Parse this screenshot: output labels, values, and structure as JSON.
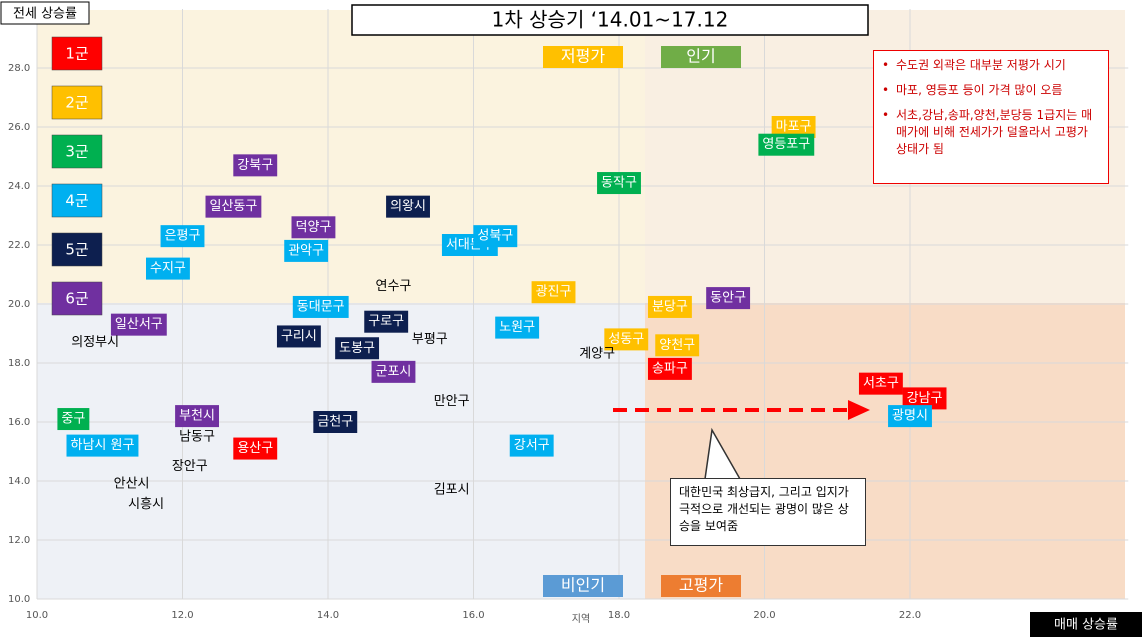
{
  "chart_data": {
    "type": "scatter",
    "title": "1차 상승기 ‘14.01~17.12",
    "ylabel": "전세 상승률",
    "xlabel": "매매 상승률",
    "x_axis_name": "지역",
    "xlim": [
      10,
      25
    ],
    "ylim": [
      10,
      30
    ],
    "xticks": [
      {
        "value": 10,
        "label": "10.0"
      },
      {
        "value": 12,
        "label": "12.0"
      },
      {
        "value": 14,
        "label": "14.0"
      },
      {
        "value": 16,
        "label": "16.0"
      },
      {
        "value": 18,
        "label": "18.0"
      },
      {
        "value": 20,
        "label": "20.0"
      },
      {
        "value": 22,
        "label": "22.0"
      }
    ],
    "yticks": [
      {
        "value": 10,
        "label": "10.0"
      },
      {
        "value": 12,
        "label": "12.0"
      },
      {
        "value": 14,
        "label": "14.0"
      },
      {
        "value": 16,
        "label": "16.0"
      },
      {
        "value": 18,
        "label": "18.0"
      },
      {
        "value": 20,
        "label": "20.0"
      },
      {
        "value": 22,
        "label": "22.0"
      },
      {
        "value": 24,
        "label": "24.0"
      },
      {
        "value": 26,
        "label": "26.0"
      },
      {
        "value": 28,
        "label": "28.0"
      }
    ],
    "grid": true,
    "series": [
      {
        "name": "1군",
        "color": "#ff0000",
        "boxed": true,
        "labels": [
          "용산구",
          "송파구",
          "서초구",
          "강남구"
        ],
        "x": [
          13.0,
          18.7,
          21.6,
          22.2
        ],
        "y": [
          15.1,
          17.8,
          17.3,
          16.8
        ]
      },
      {
        "name": "2군",
        "color": "#ffc000",
        "boxed": true,
        "labels": [
          "마포구",
          "광진구",
          "분당구",
          "성동구",
          "양천구"
        ],
        "x": [
          20.4,
          17.1,
          18.7,
          18.1,
          18.8
        ],
        "y": [
          26.0,
          20.4,
          19.9,
          18.8,
          18.6
        ]
      },
      {
        "name": "3군",
        "color": "#00b050",
        "boxed": true,
        "labels": [
          "영등포구",
          "동작구",
          "중구"
        ],
        "x": [
          20.3,
          18.0,
          10.5
        ],
        "y": [
          25.4,
          24.1,
          16.1
        ]
      },
      {
        "name": "4군",
        "color": "#00b0f0",
        "boxed": true,
        "labels": [
          "서대문구",
          "성북구",
          "관악구",
          "은평구",
          "수지구",
          "동대문구",
          "노원구",
          "강서구",
          "하남시 원구",
          "광명시"
        ],
        "x": [
          15.95,
          16.3,
          13.7,
          12.0,
          11.8,
          13.9,
          16.6,
          16.8,
          10.9,
          22.0
        ],
        "y": [
          22.0,
          22.3,
          21.8,
          22.3,
          21.2,
          19.9,
          19.2,
          15.2,
          15.2,
          16.2
        ]
      },
      {
        "name": "5군",
        "color": "#0d1f4f",
        "boxed": true,
        "labels": [
          "의왕시",
          "구리시",
          "구로구",
          "도봉구",
          "금천구"
        ],
        "x": [
          15.1,
          13.6,
          14.8,
          14.4,
          14.1
        ],
        "y": [
          23.3,
          18.9,
          19.4,
          18.5,
          16.0
        ]
      },
      {
        "name": "6군",
        "color": "#7030a0",
        "boxed": true,
        "labels": [
          "강북구",
          "일산동구",
          "덕양구",
          "일산서구",
          "군포시",
          "부천시",
          "동안구"
        ],
        "x": [
          13.0,
          12.7,
          13.8,
          11.4,
          14.9,
          12.2,
          19.5
        ],
        "y": [
          24.7,
          23.3,
          22.6,
          19.3,
          17.7,
          16.2,
          20.2
        ]
      },
      {
        "color": "#000000",
        "boxed": false,
        "labels": [
          "연수구",
          "부평구",
          "의정부시",
          "계양구",
          "만안구",
          "남동구",
          "장안구",
          "안산시",
          "시흥시",
          "김포시"
        ],
        "x": [
          14.9,
          15.4,
          10.8,
          17.7,
          15.7,
          12.2,
          12.1,
          11.3,
          11.5,
          15.7
        ],
        "y": [
          20.6,
          18.8,
          18.7,
          18.3,
          16.7,
          15.5,
          14.5,
          13.9,
          13.2,
          13.7
        ]
      }
    ],
    "quadrants": [
      {
        "label": "저평가",
        "color": "#ffc000"
      },
      {
        "label": "인기",
        "color": "#70ad47"
      },
      {
        "label": "비인기",
        "color": "#5b9bd5"
      },
      {
        "label": "고평가",
        "color": "#ed7d31"
      }
    ],
    "notes": [
      "수도권 외곽은 대부분 저평가 시기",
      "마포, 영등포 등이 가격 많이 오름",
      "서초,강남,송파,양천,분당등 1급지는 매매가에 비해 전세가가 덜올라서 고평가 상태가 됨"
    ],
    "callout": "대한민국 최상급지, 그리고 입지가 극적으로 개선되는 광명이 많은 상승을 보여줌"
  }
}
